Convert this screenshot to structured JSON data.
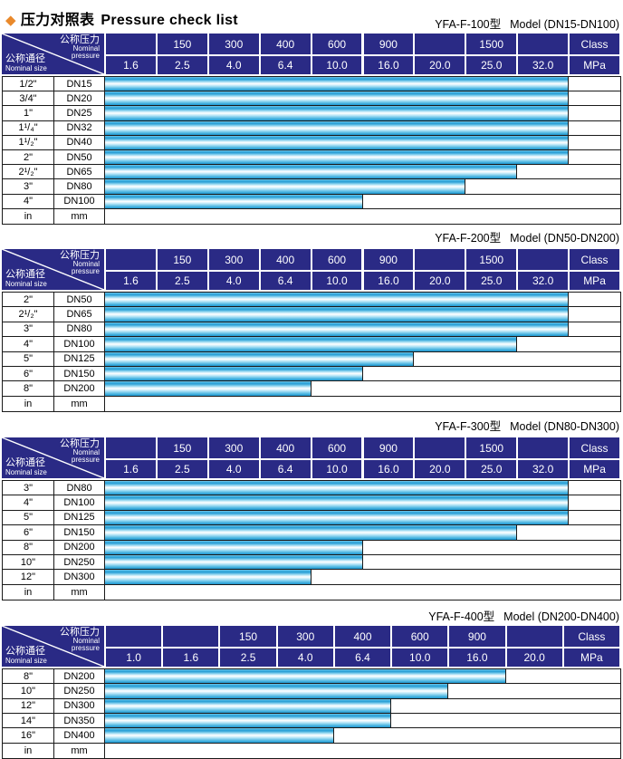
{
  "page": {
    "title": {
      "diamond": "◆",
      "zh": "压力对照表",
      "en": "Pressure check list"
    }
  },
  "corner": {
    "pressure_zh": "公称压力",
    "pressure_en_line1": "Nominal",
    "pressure_en_line2": "pressure",
    "size_zh": "公称通径",
    "size_en": "Nominal size"
  },
  "colors": {
    "header_navy": "#2a2a85",
    "bar_blue": "#2aa0d6",
    "diamond_orange": "#e9892b"
  },
  "tables": [
    {
      "model": "YFA-F-100型",
      "model_range": "Model (DN15-DN100)",
      "class_row": [
        "",
        "150",
        "300",
        "400",
        "600",
        "900",
        "",
        "1500",
        "",
        "Class"
      ],
      "mpa_row": [
        "1.6",
        "2.5",
        "4.0",
        "6.4",
        "10.0",
        "16.0",
        "20.0",
        "25.0",
        "32.0",
        "MPa"
      ],
      "rows": [
        {
          "inch": "1/2\"",
          "dn": "DN15",
          "bar_cols": 9,
          "max_mpa": "32.0"
        },
        {
          "inch": "3/4\"",
          "dn": "DN20",
          "bar_cols": 9,
          "max_mpa": "32.0"
        },
        {
          "inch": "1\"",
          "dn": "DN25",
          "bar_cols": 9,
          "max_mpa": "32.0"
        },
        {
          "inch": "1¹/₄\"",
          "dn": "DN32",
          "bar_cols": 9,
          "max_mpa": "32.0"
        },
        {
          "inch": "1¹/₂\"",
          "dn": "DN40",
          "bar_cols": 9,
          "max_mpa": "32.0"
        },
        {
          "inch": "2\"",
          "dn": "DN50",
          "bar_cols": 9,
          "max_mpa": "32.0"
        },
        {
          "inch": "2¹/₂\"",
          "dn": "DN65",
          "bar_cols": 8,
          "max_mpa": "25.0"
        },
        {
          "inch": "3\"",
          "dn": "DN80",
          "bar_cols": 7,
          "max_mpa": "20.0"
        },
        {
          "inch": "4\"",
          "dn": "DN100",
          "bar_cols": 5,
          "max_mpa": "10.0"
        },
        {
          "inch": "in",
          "dn": "mm",
          "bar_cols": 0,
          "max_mpa": ""
        }
      ]
    },
    {
      "model": "YFA-F-200型",
      "model_range": "Model (DN50-DN200)",
      "class_row": [
        "",
        "150",
        "300",
        "400",
        "600",
        "900",
        "",
        "1500",
        "",
        "Class"
      ],
      "mpa_row": [
        "1.6",
        "2.5",
        "4.0",
        "6.4",
        "10.0",
        "16.0",
        "20.0",
        "25.0",
        "32.0",
        "MPa"
      ],
      "rows": [
        {
          "inch": "2\"",
          "dn": "DN50",
          "bar_cols": 9,
          "max_mpa": "32.0"
        },
        {
          "inch": "2¹/₂\"",
          "dn": "DN65",
          "bar_cols": 9,
          "max_mpa": "32.0"
        },
        {
          "inch": "3\"",
          "dn": "DN80",
          "bar_cols": 9,
          "max_mpa": "32.0"
        },
        {
          "inch": "4\"",
          "dn": "DN100",
          "bar_cols": 8,
          "max_mpa": "25.0"
        },
        {
          "inch": "5\"",
          "dn": "DN125",
          "bar_cols": 6,
          "max_mpa": "16.0"
        },
        {
          "inch": "6\"",
          "dn": "DN150",
          "bar_cols": 5,
          "max_mpa": "10.0"
        },
        {
          "inch": "8\"",
          "dn": "DN200",
          "bar_cols": 4,
          "max_mpa": "6.4"
        },
        {
          "inch": "in",
          "dn": "mm",
          "bar_cols": 0,
          "max_mpa": ""
        }
      ]
    },
    {
      "model": "YFA-F-300型",
      "model_range": "Model (DN80-DN300)",
      "class_row": [
        "",
        "150",
        "300",
        "400",
        "600",
        "900",
        "",
        "1500",
        "",
        "Class"
      ],
      "mpa_row": [
        "1.6",
        "2.5",
        "4.0",
        "6.4",
        "10.0",
        "16.0",
        "20.0",
        "25.0",
        "32.0",
        "MPa"
      ],
      "rows": [
        {
          "inch": "3\"",
          "dn": "DN80",
          "bar_cols": 9,
          "max_mpa": "32.0"
        },
        {
          "inch": "4\"",
          "dn": "DN100",
          "bar_cols": 9,
          "max_mpa": "32.0"
        },
        {
          "inch": "5\"",
          "dn": "DN125",
          "bar_cols": 9,
          "max_mpa": "32.0"
        },
        {
          "inch": "6\"",
          "dn": "DN150",
          "bar_cols": 8,
          "max_mpa": "25.0"
        },
        {
          "inch": "8\"",
          "dn": "DN200",
          "bar_cols": 5,
          "max_mpa": "10.0"
        },
        {
          "inch": "10\"",
          "dn": "DN250",
          "bar_cols": 5,
          "max_mpa": "10.0"
        },
        {
          "inch": "12\"",
          "dn": "DN300",
          "bar_cols": 4,
          "max_mpa": "6.4"
        },
        {
          "inch": "in",
          "dn": "mm",
          "bar_cols": 0,
          "max_mpa": ""
        }
      ]
    },
    {
      "model": "YFA-F-400型",
      "model_range": "Model (DN200-DN400)",
      "class_row": [
        "",
        "",
        "150",
        "300",
        "400",
        "600",
        "900",
        "",
        "Class"
      ],
      "mpa_row": [
        "1.0",
        "1.6",
        "2.5",
        "4.0",
        "6.4",
        "10.0",
        "16.0",
        "20.0",
        "MPa"
      ],
      "rows": [
        {
          "inch": "8\"",
          "dn": "DN200",
          "bar_cols": 7,
          "max_mpa": "16.0"
        },
        {
          "inch": "10\"",
          "dn": "DN250",
          "bar_cols": 6,
          "max_mpa": "10.0"
        },
        {
          "inch": "12\"",
          "dn": "DN300",
          "bar_cols": 5,
          "max_mpa": "6.4"
        },
        {
          "inch": "14\"",
          "dn": "DN350",
          "bar_cols": 5,
          "max_mpa": "6.4"
        },
        {
          "inch": "16\"",
          "dn": "DN400",
          "bar_cols": 4,
          "max_mpa": "4.0"
        },
        {
          "inch": "in",
          "dn": "mm",
          "bar_cols": 0,
          "max_mpa": ""
        }
      ]
    }
  ]
}
